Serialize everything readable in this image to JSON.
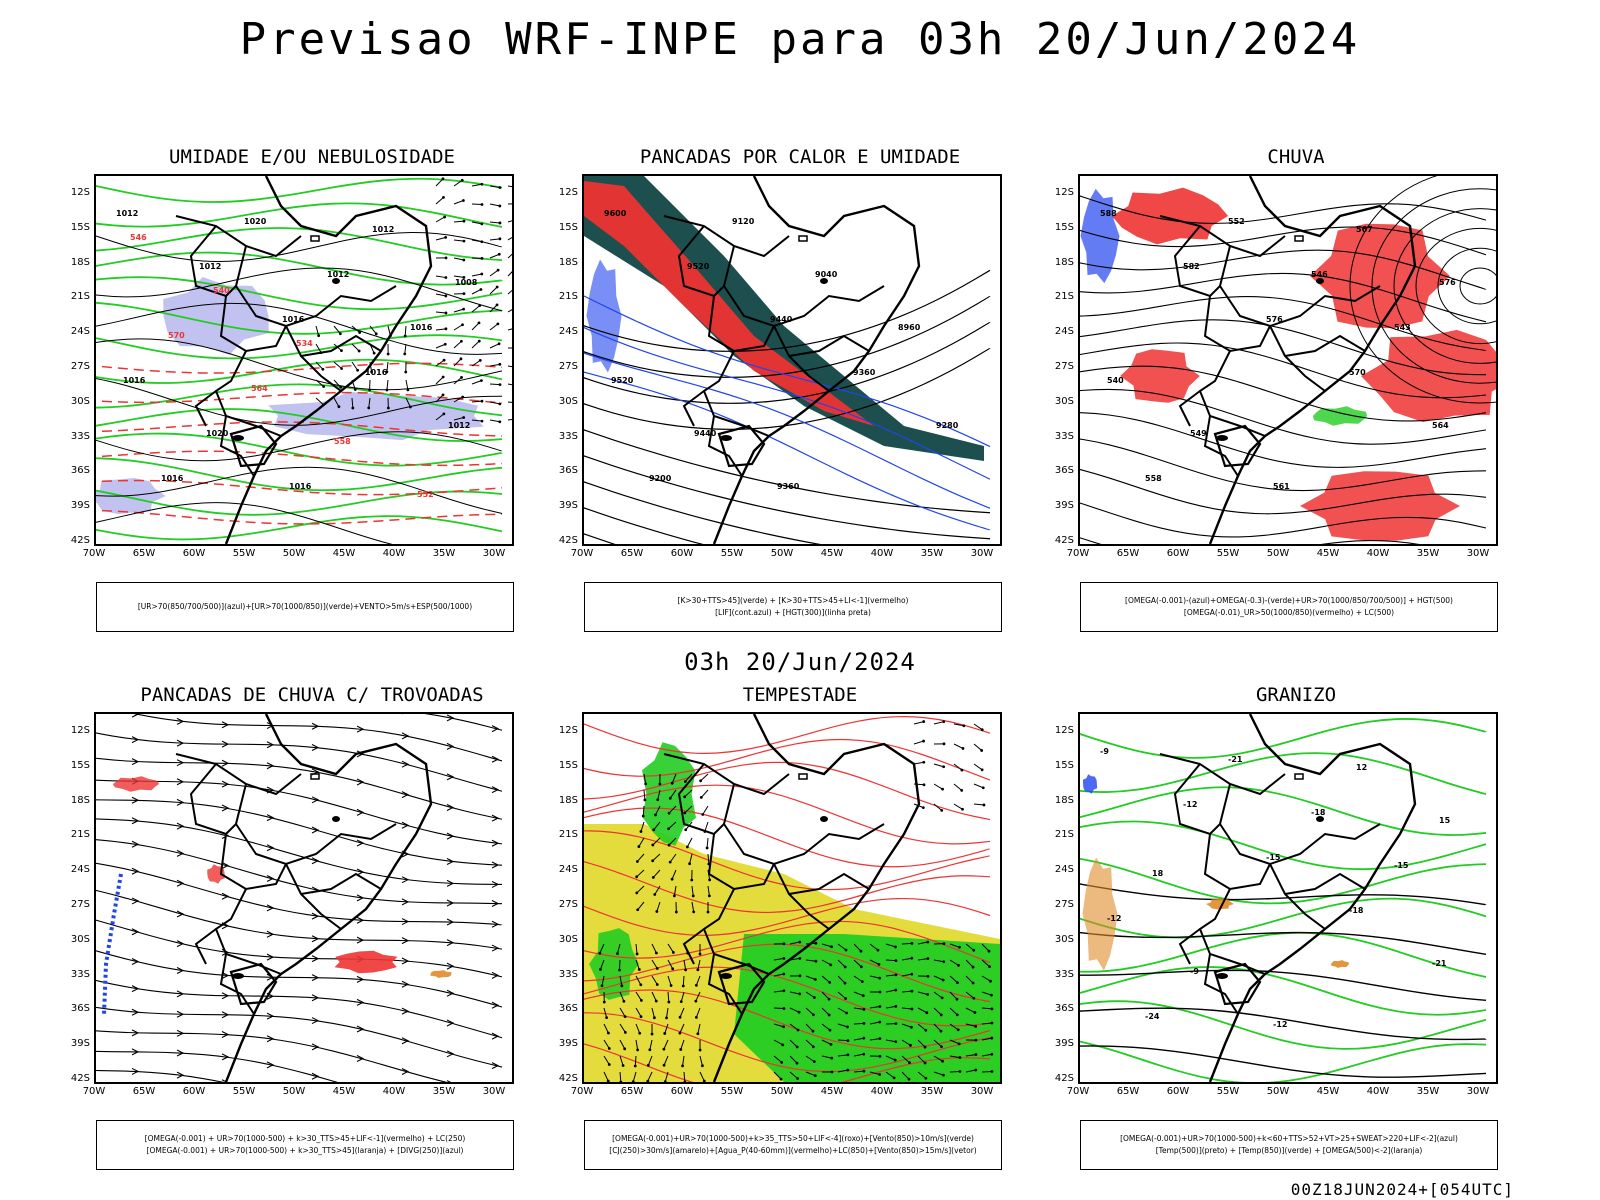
{
  "title": "Previsao WRF-INPE  para 03h 20/Jun/2024",
  "mid_title": "03h 20/Jun/2024",
  "footer": "00Z18JUN2024+[054UTC]",
  "axes": {
    "lat_ticks": [
      "12S",
      "15S",
      "18S",
      "21S",
      "24S",
      "27S",
      "30S",
      "33S",
      "36S",
      "39S",
      "42S"
    ],
    "lon_ticks": [
      "70W",
      "65W",
      "60W",
      "55W",
      "50W",
      "45W",
      "40W",
      "35W",
      "30W"
    ]
  },
  "colors": {
    "green": "#22cc22",
    "red": "#ee3333",
    "blue": "#2244ee",
    "lavender": "#b3b3ee",
    "darkteal": "#1d4f4f",
    "yellow": "#e3dc3c",
    "orange": "#e08a2a"
  },
  "panels": [
    {
      "id": "umidade",
      "title": "UMIDADE E/OU NEBULOSIDADE",
      "legend_lines": [
        "[UR>70(850/700/500)](azul)+[UR>70(1000/850)](verde)+VENTO>5m/s+ESP(500/1000)"
      ],
      "contour_labels": [
        "1012",
        "1012",
        "1016",
        "1016",
        "1012",
        "1016",
        "1020",
        "1012",
        "1016",
        "1016",
        "1020",
        "1016",
        "1012",
        "1008",
        "570",
        "564",
        "558",
        "552",
        "546",
        "540",
        "534"
      ]
    },
    {
      "id": "pancadas_calor",
      "title": "PANCADAS POR CALOR E UMIDADE",
      "legend_lines": [
        "[K>30+TTS>45](verde) + [K>30+TTS>45+LI<-1](vermelho)",
        "[LIF](cont.azul) + [HGT(300)](linha preta)"
      ],
      "contour_labels": [
        "9600",
        "9520",
        "9440",
        "9360",
        "9280",
        "9200",
        "9120",
        "9040",
        "8960",
        "9520",
        "9440",
        "9360"
      ]
    },
    {
      "id": "chuva",
      "title": "CHUVA",
      "legend_lines": [
        "[OMEGA(-0.001)-(azul)+OMEGA(-0.3)-(verde)+UR>70(1000/850/700/500)] + HGT(500)",
        "[OMEGA(-0.01)_UR>50(1000/850)(vermelho) + LC(500)"
      ],
      "contour_labels": [
        "588",
        "582",
        "576",
        "570",
        "564",
        "558",
        "552",
        "546",
        "543",
        "540",
        "549",
        "561",
        "567",
        "576"
      ]
    },
    {
      "id": "pancadas_trovoadas",
      "title": "PANCADAS DE CHUVA C/ TROVOADAS",
      "legend_lines": [
        "[OMEGA(-0.001) + UR>70(1000-500) + k>30_TTS>45+LIF<-1](vermelho) + LC(250)",
        "[OMEGA(-0.001) + UR>70(1000-500) + k>30_TTS>45](laranja) + [DIVG(250)](azul)"
      ],
      "contour_labels": []
    },
    {
      "id": "tempestade",
      "title": "TEMPESTADE",
      "legend_lines": [
        "[OMEGA(-0.001)+UR>70(1000-500)+k>35_TTS>50+LIF<-4](roxo)+[Vento(850)>10m/s](verde)",
        "[CJ(250)>30m/s](amarelo)+[Agua_P(40-60mm)](vermelho)+LC(850)+[Vento(850)>15m/s](vetor)"
      ],
      "contour_labels": []
    },
    {
      "id": "granizo",
      "title": "GRANIZO",
      "legend_lines": [
        "[OMEGA(-0.001)+UR>70(1000-500)+k<60+TTS>52+VT>25+SWEAT>220+LIF<-2](azul)",
        "[Temp(500)](preto) + [Temp(850)](verde) + [OMEGA(500)<-2](laranja)"
      ],
      "contour_labels": [
        "-9",
        "-12",
        "-15",
        "-18",
        "-21",
        "-24",
        "-21",
        "-18",
        "-15",
        "-12",
        "-9",
        "-12",
        "12",
        "15",
        "18"
      ]
    }
  ]
}
